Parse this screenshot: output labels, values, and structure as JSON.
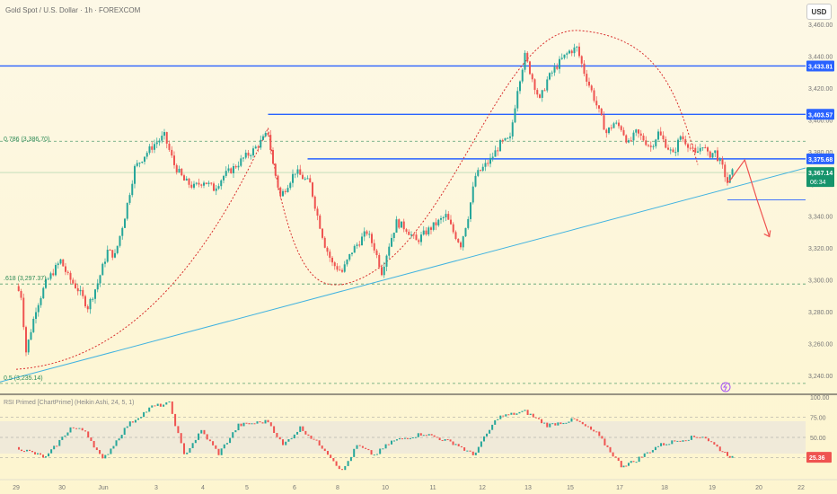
{
  "header": {
    "title": "Gold Spot / U.S. Dollar · 1h · FOREXCOM",
    "currency_button": "USD"
  },
  "fib_levels": [
    {
      "label": "0.786 (3,386.70)",
      "price": 3386.7
    },
    {
      "label": ".618 (3,297.37)",
      "price": 3297.37
    },
    {
      "label": "0.5 (3,235.14)",
      "price": 3235.14
    }
  ],
  "price_tags": {
    "line_1": {
      "label": "3,433.81",
      "price": 3433.81
    },
    "line_2": {
      "label": "3,403.57",
      "price": 3403.57
    },
    "line_3": {
      "label": "3,375.68",
      "price": 3375.68
    },
    "current": {
      "label": "3,367.14",
      "countdown": "06:34",
      "price": 3367.14
    }
  },
  "rsi": {
    "title": "RSI Primed [ChartPrime] (Heikin Ashi, 24, 5, 1)",
    "value_label": "25.36",
    "value": 25.36,
    "ylim": [
      0,
      100
    ],
    "ticks": [
      "100.00",
      "75.00",
      "50.00",
      "25.00"
    ],
    "bands": [
      75,
      50,
      25
    ]
  },
  "chart_data": {
    "type": "candlestick",
    "title": "Gold Spot / U.S. Dollar · 1h · FOREXCOM",
    "ylim": [
      3230,
      3465
    ],
    "y_ticks": [
      "3,460.00",
      "3,440.00",
      "3,420.00",
      "3,400.00",
      "3,380.00",
      "3,360.00",
      "3,340.00",
      "3,320.00",
      "3,300.00",
      "3,280.00",
      "3,260.00",
      "3,240.00"
    ],
    "x_ticks": [
      "29",
      "30",
      "Jun",
      "3",
      "4",
      "5",
      "6",
      "8",
      "10",
      "11",
      "12",
      "13",
      "15",
      "17",
      "18",
      "19",
      "20",
      "22"
    ],
    "price_path": [
      [
        0,
        3296
      ],
      [
        0.2,
        3290
      ],
      [
        0.4,
        3255
      ],
      [
        0.8,
        3282
      ],
      [
        1.2,
        3298
      ],
      [
        1.5,
        3305
      ],
      [
        1.8,
        3312
      ],
      [
        2.1,
        3302
      ],
      [
        2.5,
        3294
      ],
      [
        2.9,
        3283
      ],
      [
        3.3,
        3298
      ],
      [
        3.7,
        3318
      ],
      [
        4.0,
        3315
      ],
      [
        4.4,
        3340
      ],
      [
        4.8,
        3370
      ],
      [
        5.2,
        3378
      ],
      [
        5.6,
        3385
      ],
      [
        6.0,
        3390
      ],
      [
        6.4,
        3372
      ],
      [
        6.8,
        3362
      ],
      [
        7.2,
        3358
      ],
      [
        7.6,
        3362
      ],
      [
        8.0,
        3357
      ],
      [
        8.4,
        3365
      ],
      [
        8.8,
        3370
      ],
      [
        9.2,
        3376
      ],
      [
        9.6,
        3381
      ],
      [
        10.0,
        3388
      ],
      [
        10.2,
        3392
      ],
      [
        10.4,
        3372
      ],
      [
        10.7,
        3352
      ],
      [
        11.0,
        3360
      ],
      [
        11.3,
        3368
      ],
      [
        11.6,
        3364
      ],
      [
        11.9,
        3360
      ],
      [
        12.2,
        3340
      ],
      [
        12.5,
        3322
      ],
      [
        12.8,
        3310
      ],
      [
        13.2,
        3305
      ],
      [
        13.6,
        3318
      ],
      [
        13.9,
        3324
      ],
      [
        14.2,
        3330
      ],
      [
        14.5,
        3320
      ],
      [
        14.8,
        3305
      ],
      [
        15.1,
        3322
      ],
      [
        15.4,
        3336
      ],
      [
        15.8,
        3332
      ],
      [
        16.2,
        3324
      ],
      [
        16.6,
        3330
      ],
      [
        17.0,
        3335
      ],
      [
        17.4,
        3340
      ],
      [
        17.7,
        3330
      ],
      [
        18.0,
        3322
      ],
      [
        18.3,
        3340
      ],
      [
        18.6,
        3365
      ],
      [
        18.9,
        3370
      ],
      [
        19.2,
        3375
      ],
      [
        19.6,
        3385
      ],
      [
        20.0,
        3388
      ],
      [
        20.3,
        3420
      ],
      [
        20.6,
        3440
      ],
      [
        20.9,
        3426
      ],
      [
        21.2,
        3412
      ],
      [
        21.5,
        3425
      ],
      [
        21.8,
        3432
      ],
      [
        22.1,
        3438
      ],
      [
        22.4,
        3443
      ],
      [
        22.7,
        3445
      ],
      [
        23.0,
        3430
      ],
      [
        23.3,
        3418
      ],
      [
        23.6,
        3405
      ],
      [
        23.9,
        3392
      ],
      [
        24.2,
        3398
      ],
      [
        24.5,
        3395
      ],
      [
        24.8,
        3385
      ],
      [
        25.1,
        3392
      ],
      [
        25.4,
        3388
      ],
      [
        25.7,
        3383
      ],
      [
        26.0,
        3392
      ],
      [
        26.3,
        3385
      ],
      [
        26.6,
        3378
      ],
      [
        26.9,
        3390
      ],
      [
        27.2,
        3385
      ],
      [
        27.5,
        3378
      ],
      [
        27.8,
        3385
      ],
      [
        28.0,
        3378
      ],
      [
        28.3,
        3380
      ],
      [
        28.6,
        3370
      ],
      [
        28.8,
        3361
      ],
      [
        29.0,
        3367
      ]
    ],
    "series": [
      {
        "name": "Gold Spot / U.S. Dollar",
        "last": 3367.14
      },
      {
        "name": "RSI Primed",
        "last": 25.36
      }
    ],
    "horizontal_levels": [
      3433.81,
      3403.57,
      3375.68,
      3386.7,
      3297.37,
      3235.14
    ],
    "projection": [
      [
        28.85,
        3361
      ],
      [
        29.5,
        3375
      ],
      [
        30.0,
        3350
      ],
      [
        30.5,
        3327
      ]
    ],
    "grid": false
  },
  "colors": {
    "up": "#26a69a",
    "down": "#ef5350",
    "level_line": "#2962ff",
    "trend_line": "#42b3e0",
    "arc": "#d9302e",
    "fib": "#2e8b57"
  }
}
